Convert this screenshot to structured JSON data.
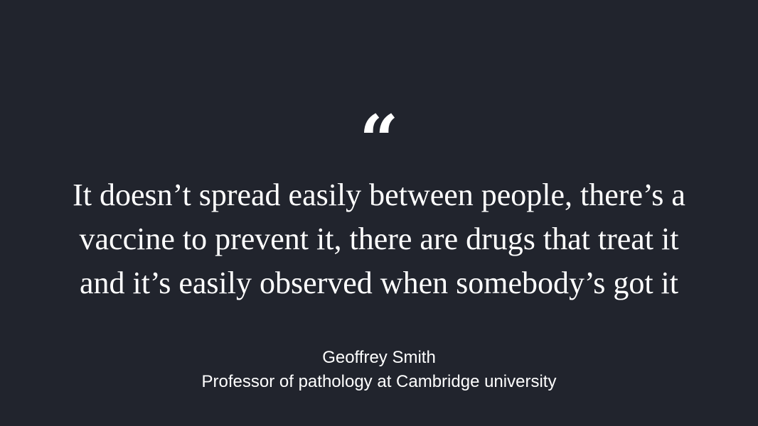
{
  "quote": {
    "mark": "“",
    "lines": [
      "It doesn’t spread easily between people, there’s a",
      "vaccine to prevent it, there are drugs that treat it",
      "and it’s easily observed when somebody’s got it"
    ]
  },
  "attribution": {
    "name": "Geoffrey Smith",
    "title": "Professor of pathology at Cambridge university"
  },
  "colors": {
    "background": "#21242d",
    "text": "#ffffff"
  }
}
